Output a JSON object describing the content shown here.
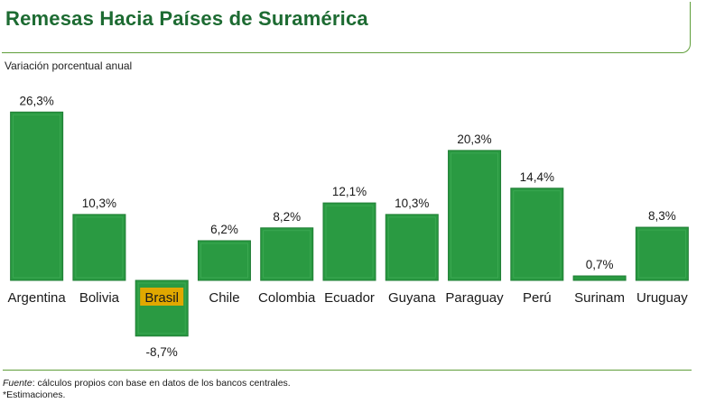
{
  "header": {
    "title": "Remesas Hacia Países de Suramérica",
    "subtitle": "Variación porcentual anual"
  },
  "footer": {
    "source_label": "Fuente",
    "source_text": ": cálculos propios con base en datos de los bancos centrales.",
    "note": "*Estimaciones."
  },
  "colors": {
    "bar": "#2a9a42",
    "bar_edge": "#1f7d34",
    "highlight": "#e0a800",
    "title": "#1d6b32"
  },
  "chart_data": {
    "type": "bar",
    "title": "Remesas Hacia Países de Suramérica",
    "ylabel": "Variación porcentual anual",
    "xlabel": "",
    "ylim": [
      -10,
      28
    ],
    "grid": false,
    "categories": [
      "Argentina",
      "Bolivia",
      "Brasil",
      "Chile",
      "Colombia",
      "Ecuador",
      "Guyana",
      "Paraguay",
      "Perú",
      "Surinam",
      "Uruguay"
    ],
    "values": [
      26.3,
      10.3,
      -8.7,
      6.2,
      8.2,
      12.1,
      10.3,
      20.3,
      14.4,
      0.7,
      8.3
    ],
    "value_labels": [
      "26,3%",
      "10,3%",
      "-8,7%",
      "6,2%",
      "8,2%",
      "12,1%",
      "10,3%",
      "20,3%",
      "14,4%",
      "0,7%",
      "8,3%"
    ],
    "highlighted_category": "Brasil"
  }
}
